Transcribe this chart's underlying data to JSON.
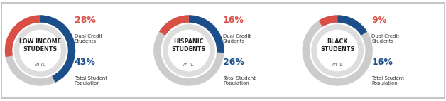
{
  "charts": [
    {
      "title_line1": "LOW INCOME",
      "title_line2": "STUDENTS",
      "title_light": "in IL",
      "dual_credit_pct": 28,
      "total_student_pct": 43,
      "dual_credit_label": "Dual Credit\nStudents",
      "total_student_label": "Total Student\nPopulation"
    },
    {
      "title_line1": "HISPANIC",
      "title_line2": "STUDENTS",
      "title_light": "in IL",
      "dual_credit_pct": 16,
      "total_student_pct": 26,
      "dual_credit_label": "Dual Credit\nStudents",
      "total_student_label": "Total Student\nPopulation"
    },
    {
      "title_line1": "BLACK",
      "title_line2": "STUDENTS",
      "title_light": "in IL",
      "dual_credit_pct": 9,
      "total_student_pct": 16,
      "dual_credit_label": "Dual Credit\nStudents",
      "total_student_label": "Total Student\nPopulation"
    }
  ],
  "color_red": "#D94F45",
  "color_blue": "#1B4F8A",
  "color_gray_outer": "#CCCCCC",
  "color_gray_inner": "#DDDDDD",
  "color_text_dark": "#222222",
  "color_text_gray": "#555555",
  "background": "#FFFFFF",
  "border_color": "#BBBBBB",
  "fig_width": 6.28,
  "fig_height": 1.42,
  "dpi": 100
}
